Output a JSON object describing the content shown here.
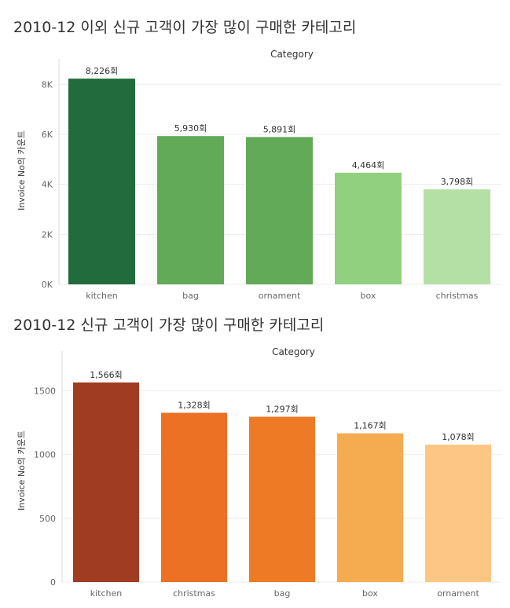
{
  "chart_data": [
    {
      "type": "bar",
      "title": "2010-12 이외 신규 고객이 가장 많이 구매한 카테고리",
      "header": "Category",
      "ylabel": "Invoice No의 카운트",
      "categories": [
        "kitchen",
        "bag",
        "ornament",
        "box",
        "christmas"
      ],
      "values": [
        8226,
        5930,
        5891,
        4464,
        3798
      ],
      "data_labels": [
        "8,226회",
        "5,930회",
        "5,891회",
        "4,464회",
        "3,798회"
      ],
      "colors": [
        "#226b3c",
        "#62aa58",
        "#62aa58",
        "#90d07f",
        "#b4e0a6"
      ],
      "yticks": [
        0,
        2000,
        4000,
        6000,
        8000
      ],
      "ytick_labels": [
        "0K",
        "2K",
        "4K",
        "6K",
        "8K"
      ],
      "ylim": [
        0,
        8700
      ],
      "grid": true
    },
    {
      "type": "bar",
      "title": "2010-12 신규 고객이 가장 많이 구매한 카테고리",
      "header": "Category",
      "ylabel": "Invoice No의 카운트",
      "categories": [
        "kitchen",
        "christmas",
        "bag",
        "box",
        "ornament"
      ],
      "values": [
        1566,
        1328,
        1297,
        1167,
        1078
      ],
      "data_labels": [
        "1,566회",
        "1,328회",
        "1,297회",
        "1,167회",
        "1,078회"
      ],
      "colors": [
        "#a03c22",
        "#ec7124",
        "#ef7a26",
        "#f5ab4f",
        "#fec684"
      ],
      "yticks": [
        0,
        500,
        1000,
        1500
      ],
      "ytick_labels": [
        "0",
        "500",
        "1000",
        "1500"
      ],
      "ylim": [
        0,
        1750
      ],
      "grid": true
    }
  ]
}
